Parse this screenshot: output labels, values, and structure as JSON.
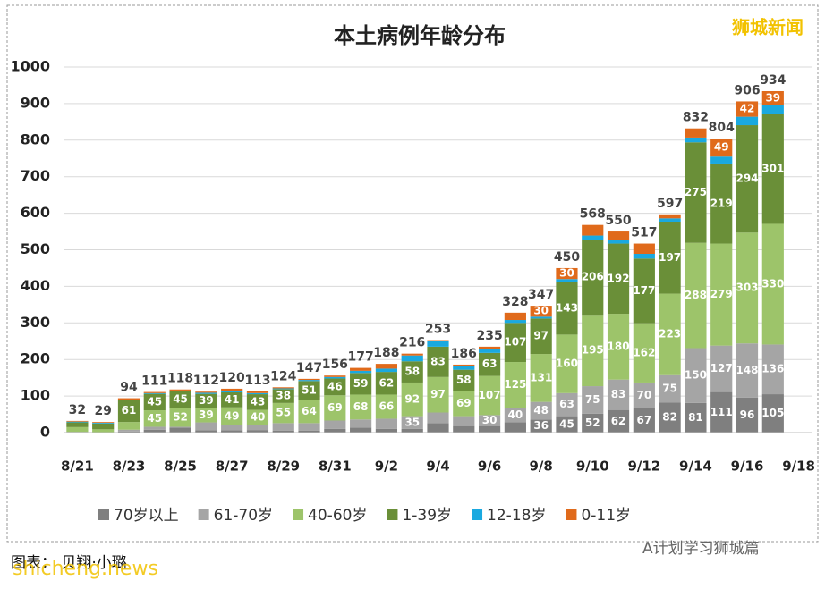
{
  "chart_data": {
    "type": "stacked_bar",
    "title": "本土病例年龄分布",
    "watermark": "狮城新闻",
    "footer_credit": "图表： 贝翔·小璐",
    "footer_site": "shicheng.news",
    "footer_account": "A计划学习狮城篇",
    "categories": [
      "8/21",
      null,
      "8/23",
      null,
      "8/25",
      null,
      "8/27",
      null,
      "8/29",
      null,
      "8/31",
      null,
      "9/2",
      null,
      "9/4",
      null,
      "9/6",
      null,
      "9/8",
      null,
      "9/10",
      null,
      "9/12",
      null,
      "9/14",
      null,
      "9/16",
      null,
      "9/18"
    ],
    "series": [
      {
        "name": "70岁以上",
        "color": "#7f7f7f",
        "values": [
          1,
          0,
          3,
          8,
          14,
          6,
          6,
          7,
          5,
          5,
          10,
          14,
          10,
          10,
          26,
          18,
          18,
          28,
          36,
          45,
          52,
          62,
          67,
          82,
          81,
          111,
          96,
          105,
          null
        ]
      },
      {
        "name": "61-70岁",
        "color": "#a5a5a5",
        "values": [
          1,
          1,
          5,
          8,
          2,
          22,
          14,
          15,
          21,
          21,
          23,
          22,
          28,
          35,
          29,
          27,
          30,
          40,
          48,
          63,
          75,
          83,
          70,
          75,
          150,
          127,
          148,
          136,
          null
        ]
      },
      {
        "name": "40-60岁",
        "color": "#9dc46a",
        "values": [
          13,
          8,
          21,
          45,
          52,
          39,
          49,
          40,
          55,
          64,
          69,
          68,
          66,
          92,
          97,
          69,
          107,
          125,
          131,
          160,
          195,
          180,
          162,
          223,
          288,
          279,
          303,
          330,
          null
        ]
      },
      {
        "name": "1-39岁",
        "color": "#6a8f38",
        "values": [
          13,
          16,
          61,
          45,
          45,
          39,
          41,
          43,
          38,
          51,
          46,
          59,
          62,
          58,
          83,
          58,
          63,
          107,
          97,
          143,
          206,
          192,
          177,
          197,
          275,
          219,
          294,
          301,
          null
        ]
      },
      {
        "name": "12-18岁",
        "color": "#1aa9e0",
        "values": [
          2,
          2,
          0,
          2,
          2,
          3,
          4,
          3,
          2,
          3,
          4,
          6,
          9,
          16,
          15,
          11,
          10,
          8,
          5,
          9,
          11,
          11,
          13,
          9,
          13,
          19,
          23,
          23,
          null
        ]
      },
      {
        "name": "0-11岁",
        "color": "#e06a1b",
        "values": [
          2,
          2,
          4,
          3,
          3,
          3,
          6,
          5,
          3,
          3,
          4,
          8,
          13,
          5,
          3,
          3,
          7,
          20,
          30,
          30,
          29,
          22,
          28,
          11,
          25,
          49,
          42,
          39,
          null
        ]
      }
    ],
    "totals": [
      32,
      29,
      94,
      111,
      118,
      112,
      120,
      113,
      124,
      147,
      156,
      177,
      188,
      216,
      253,
      186,
      235,
      328,
      347,
      450,
      568,
      550,
      517,
      597,
      832,
      804,
      906,
      934,
      null
    ],
    "ylim": [
      0,
      1000
    ],
    "yticks": [
      0,
      100,
      200,
      300,
      400,
      500,
      600,
      700,
      800,
      900,
      1000
    ],
    "grid": true
  }
}
